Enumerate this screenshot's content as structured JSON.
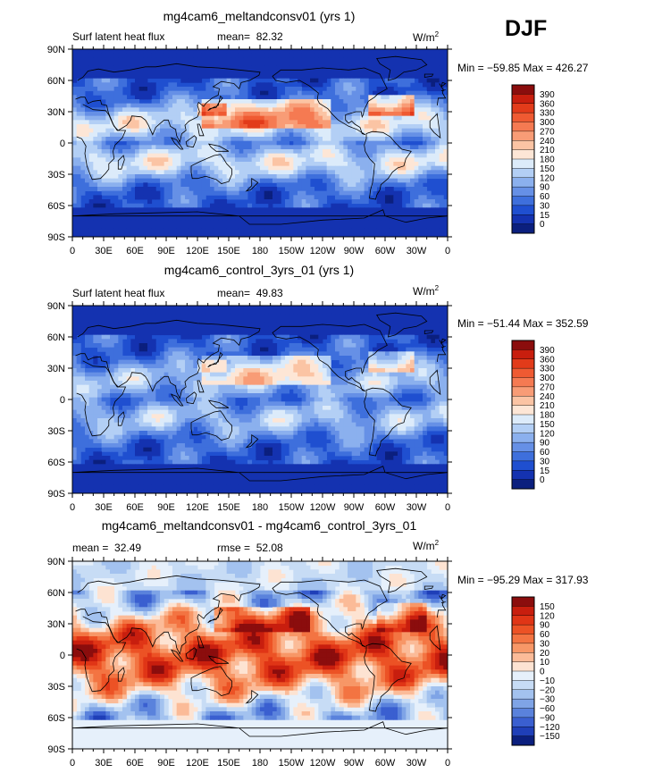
{
  "season": "DJF",
  "chart_data": [
    {
      "type": "heatmap",
      "title": "mg4cam6_meltandconsv01 (yrs 1)",
      "left_label": "Surf latent heat flux",
      "stat1_label": "mean=",
      "stat1_value": "82.32",
      "units_base": "W/m",
      "units_exp": "2",
      "minmax": "Min = −59.85  Max = 426.27",
      "x_ticks": [
        "0",
        "30E",
        "60E",
        "90E",
        "120E",
        "150E",
        "180",
        "150W",
        "120W",
        "90W",
        "60W",
        "30W",
        "0"
      ],
      "y_ticks": [
        "90N",
        "60N",
        "30N",
        "0",
        "30S",
        "60S",
        "90S"
      ],
      "colorbar_levels": [
        "390",
        "360",
        "330",
        "300",
        "270",
        "240",
        "210",
        "180",
        "150",
        "120",
        "90",
        "60",
        "30",
        "15",
        "0"
      ],
      "colorbar_colors": [
        "#8b0d0d",
        "#c81e0e",
        "#e23b1a",
        "#ef5a32",
        "#f57a52",
        "#f89c76",
        "#fbc4a4",
        "#fde6d6",
        "#dcebfa",
        "#b3cff5",
        "#8bb0ee",
        "#6690e6",
        "#3e6fdc",
        "#1f4fd0",
        "#1432b0",
        "#0b1f7e"
      ],
      "value_range": [
        -59.85,
        426.27
      ]
    },
    {
      "type": "heatmap",
      "title": "mg4cam6_control_3yrs_01 (yrs 1)",
      "left_label": "Surf latent heat flux",
      "stat1_label": "mean=",
      "stat1_value": "49.83",
      "units_base": "W/m",
      "units_exp": "2",
      "minmax": "Min = −51.44  Max = 352.59",
      "x_ticks": [
        "0",
        "30E",
        "60E",
        "90E",
        "120E",
        "150E",
        "180",
        "150W",
        "120W",
        "90W",
        "60W",
        "30W",
        "0"
      ],
      "y_ticks": [
        "90N",
        "60N",
        "30N",
        "0",
        "30S",
        "60S",
        "90S"
      ],
      "colorbar_levels": [
        "390",
        "360",
        "330",
        "300",
        "270",
        "240",
        "210",
        "180",
        "150",
        "120",
        "90",
        "60",
        "30",
        "15",
        "0"
      ],
      "colorbar_colors": [
        "#8b0d0d",
        "#c81e0e",
        "#e23b1a",
        "#ef5a32",
        "#f57a52",
        "#f89c76",
        "#fbc4a4",
        "#fde6d6",
        "#dcebfa",
        "#b3cff5",
        "#8bb0ee",
        "#6690e6",
        "#3e6fdc",
        "#1f4fd0",
        "#1432b0",
        "#0b1f7e"
      ],
      "value_range": [
        -51.44,
        352.59
      ]
    },
    {
      "type": "heatmap",
      "title": "mg4cam6_meltandconsv01 - mg4cam6_control_3yrs_01",
      "left_label": "mean =",
      "left_value": "32.49",
      "stat1_label": "rmse =",
      "stat1_value": "52.08",
      "units_base": "W/m",
      "units_exp": "2",
      "minmax": "Min = −95.29  Max = 317.93",
      "x_ticks": [
        "0",
        "30E",
        "60E",
        "90E",
        "120E",
        "150E",
        "180",
        "150W",
        "120W",
        "90W",
        "60W",
        "30W",
        "0"
      ],
      "y_ticks": [
        "90N",
        "60N",
        "30N",
        "0",
        "30S",
        "60S",
        "90S"
      ],
      "colorbar_levels": [
        "150",
        "120",
        "90",
        "60",
        "30",
        "20",
        "10",
        "0",
        "−10",
        "−20",
        "−30",
        "−60",
        "−90",
        "−120",
        "−150"
      ],
      "colorbar_colors": [
        "#8b0d0d",
        "#c81e0e",
        "#e03516",
        "#ec5225",
        "#f37442",
        "#f79767",
        "#fbbb98",
        "#fde3d2",
        "#e6f0fb",
        "#c7dcf5",
        "#a3c2ef",
        "#7fa4e6",
        "#5a82dc",
        "#3a5fd0",
        "#1f3fb8",
        "#0b1f7e"
      ],
      "value_range": [
        -95.29,
        317.93
      ]
    }
  ]
}
